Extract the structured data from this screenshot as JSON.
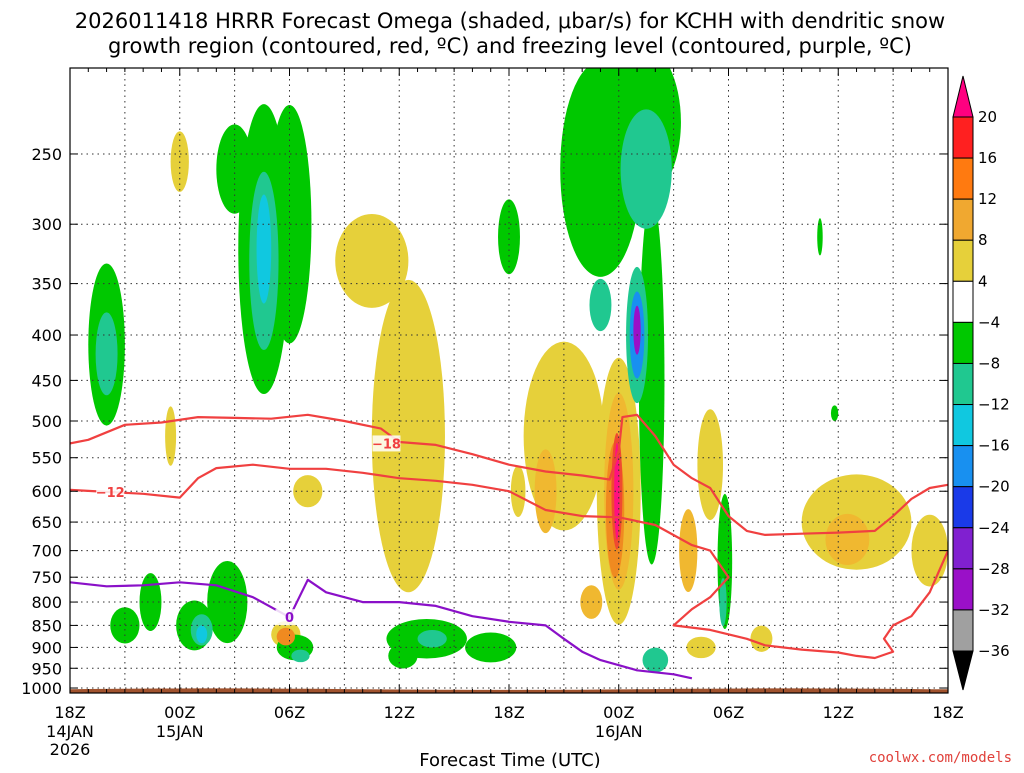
{
  "chart_data": {
    "type": "time-height cross section",
    "title_line1": "2026011418 HRRR Forecast Omega (shaded, μbar/s) for KCHH with dendritic snow",
    "title_line2": "growth region (contoured, red, ºC) and freezing level (contoured, purple, ºC)",
    "xlabel": "Forecast Time (UTC)",
    "credit": "coolwx.com/models",
    "x_ticks": [
      {
        "hour": 0,
        "l1": "18Z",
        "l2": "14JAN",
        "l3": "2026"
      },
      {
        "hour": 6,
        "l1": "00Z",
        "l2": "15JAN",
        "l3": ""
      },
      {
        "hour": 12,
        "l1": "06Z",
        "l2": "",
        "l3": ""
      },
      {
        "hour": 18,
        "l1": "12Z",
        "l2": "",
        "l3": ""
      },
      {
        "hour": 24,
        "l1": "18Z",
        "l2": "",
        "l3": ""
      },
      {
        "hour": 30,
        "l1": "00Z",
        "l2": "16JAN",
        "l3": ""
      },
      {
        "hour": 36,
        "l1": "06Z",
        "l2": "",
        "l3": ""
      },
      {
        "hour": 42,
        "l1": "12Z",
        "l2": "",
        "l3": ""
      },
      {
        "hour": 48,
        "l1": "18Z",
        "l2": "",
        "l3": ""
      }
    ],
    "xlim_hours": [
      0,
      48
    ],
    "y_ticks_hpa": [
      250,
      300,
      350,
      400,
      450,
      500,
      550,
      600,
      650,
      700,
      750,
      800,
      850,
      900,
      950,
      1000
    ],
    "ylim_hpa": [
      1013,
      200
    ],
    "colorbar": {
      "ticks": [
        "20",
        "16",
        "12",
        "8",
        "4",
        "−4",
        "−8",
        "−12",
        "−16",
        "−20",
        "−24",
        "−28",
        "−32",
        "−36"
      ],
      "colors": [
        "#ff0080",
        "#ff2020",
        "#ff7a10",
        "#f0a830",
        "#e6d03a",
        "#ffffff",
        "#00c800",
        "#20c890",
        "#10c8e0",
        "#1890f0",
        "#1a3ae8",
        "#8020d0",
        "#9a10c8",
        "#a0a0a0",
        "#000000"
      ]
    },
    "omega_features": [
      {
        "t": 2.0,
        "p": 410,
        "dt": 1.0,
        "dp": 170,
        "v": -8
      },
      {
        "t": 2.0,
        "p": 420,
        "dt": 0.6,
        "dp": 90,
        "v": -12
      },
      {
        "t": 3.0,
        "p": 850,
        "dt": 0.8,
        "dp": 80,
        "v": -8
      },
      {
        "t": 4.4,
        "p": 800,
        "dt": 0.6,
        "dp": 120,
        "v": -8
      },
      {
        "t": 6.8,
        "p": 850,
        "dt": 1.0,
        "dp": 110,
        "v": -8
      },
      {
        "t": 7.2,
        "p": 860,
        "dt": 0.6,
        "dp": 70,
        "v": -12
      },
      {
        "t": 7.2,
        "p": 870,
        "dt": 0.3,
        "dp": 40,
        "v": -16
      },
      {
        "t": 8.6,
        "p": 800,
        "dt": 1.1,
        "dp": 170,
        "v": -8
      },
      {
        "t": 10.6,
        "p": 320,
        "dt": 1.4,
        "dp": 230,
        "v": -8
      },
      {
        "t": 10.6,
        "p": 330,
        "dt": 0.8,
        "dp": 150,
        "v": -12
      },
      {
        "t": 10.6,
        "p": 320,
        "dt": 0.4,
        "dp": 90,
        "v": -16
      },
      {
        "t": 12.0,
        "p": 300,
        "dt": 1.2,
        "dp": 180,
        "v": -8
      },
      {
        "t": 9.0,
        "p": 260,
        "dt": 1.0,
        "dp": 60,
        "v": -8
      },
      {
        "t": 12.3,
        "p": 900,
        "dt": 1.0,
        "dp": 60,
        "v": -8
      },
      {
        "t": 12.6,
        "p": 920,
        "dt": 0.5,
        "dp": 30,
        "v": -12
      },
      {
        "t": 19.5,
        "p": 880,
        "dt": 2.2,
        "dp": 90,
        "v": -8
      },
      {
        "t": 19.8,
        "p": 880,
        "dt": 0.8,
        "dp": 40,
        "v": -12
      },
      {
        "t": 18.2,
        "p": 920,
        "dt": 0.8,
        "dp": 60,
        "v": -8
      },
      {
        "t": 23.0,
        "p": 900,
        "dt": 1.4,
        "dp": 70,
        "v": -8
      },
      {
        "t": 24.0,
        "p": 310,
        "dt": 0.6,
        "dp": 60,
        "v": -8
      },
      {
        "t": 29.0,
        "p": 260,
        "dt": 2.2,
        "dp": 180,
        "v": -8
      },
      {
        "t": 29.0,
        "p": 370,
        "dt": 0.6,
        "dp": 50,
        "v": -12
      },
      {
        "t": 31.2,
        "p": 230,
        "dt": 2.2,
        "dp": 140,
        "v": -8
      },
      {
        "t": 31.5,
        "p": 260,
        "dt": 1.4,
        "dp": 80,
        "v": -12
      },
      {
        "t": 31.8,
        "p": 450,
        "dt": 0.7,
        "dp": 400,
        "v": -8
      },
      {
        "t": 31.0,
        "p": 400,
        "dt": 0.6,
        "dp": 140,
        "v": -12
      },
      {
        "t": 31.0,
        "p": 400,
        "dt": 0.4,
        "dp": 90,
        "v": -20
      },
      {
        "t": 31.0,
        "p": 395,
        "dt": 0.2,
        "dp": 50,
        "v": -28
      },
      {
        "t": 35.8,
        "p": 720,
        "dt": 0.4,
        "dp": 250,
        "v": -8
      },
      {
        "t": 35.7,
        "p": 800,
        "dt": 0.2,
        "dp": 100,
        "v": -12
      },
      {
        "t": 32.0,
        "p": 930,
        "dt": 0.7,
        "dp": 60,
        "v": -12
      },
      {
        "t": 41.0,
        "p": 310,
        "dt": 0.15,
        "dp": 30,
        "v": -8
      },
      {
        "t": 41.8,
        "p": 490,
        "dt": 0.2,
        "dp": 20,
        "v": -8
      }
    ],
    "omega_positive_features": [
      {
        "t": 6.0,
        "p": 255,
        "dt": 0.5,
        "dp": 40,
        "v": 4
      },
      {
        "t": 18.5,
        "p": 520,
        "dt": 2.0,
        "dp": 400,
        "v": 4
      },
      {
        "t": 16.5,
        "p": 330,
        "dt": 2.0,
        "dp": 80,
        "v": 4
      },
      {
        "t": 27.0,
        "p": 520,
        "dt": 2.2,
        "dp": 250,
        "v": 4
      },
      {
        "t": 26.0,
        "p": 600,
        "dt": 0.6,
        "dp": 130,
        "v": 8
      },
      {
        "t": 30.0,
        "p": 600,
        "dt": 1.2,
        "dp": 400,
        "v": 4
      },
      {
        "t": 30.0,
        "p": 600,
        "dt": 0.8,
        "dp": 300,
        "v": 8
      },
      {
        "t": 29.8,
        "p": 630,
        "dt": 0.5,
        "dp": 220,
        "v": 12
      },
      {
        "t": 29.9,
        "p": 600,
        "dt": 0.3,
        "dp": 180,
        "v": 16
      },
      {
        "t": 29.9,
        "p": 600,
        "dt": 0.15,
        "dp": 150,
        "v": 20
      },
      {
        "t": 28.5,
        "p": 800,
        "dt": 0.6,
        "dp": 70,
        "v": 8
      },
      {
        "t": 24.5,
        "p": 600,
        "dt": 0.4,
        "dp": 80,
        "v": 4
      },
      {
        "t": 35.0,
        "p": 560,
        "dt": 0.7,
        "dp": 160,
        "v": 4
      },
      {
        "t": 33.8,
        "p": 700,
        "dt": 0.5,
        "dp": 150,
        "v": 8
      },
      {
        "t": 34.5,
        "p": 900,
        "dt": 0.8,
        "dp": 50,
        "v": 4
      },
      {
        "t": 37.8,
        "p": 880,
        "dt": 0.6,
        "dp": 60,
        "v": 4
      },
      {
        "t": 43.0,
        "p": 650,
        "dt": 3.0,
        "dp": 160,
        "v": 4
      },
      {
        "t": 42.5,
        "p": 680,
        "dt": 1.2,
        "dp": 90,
        "v": 8
      },
      {
        "t": 47.0,
        "p": 700,
        "dt": 1.0,
        "dp": 130,
        "v": 4
      },
      {
        "t": 11.8,
        "p": 870,
        "dt": 0.8,
        "dp": 60,
        "v": 4
      },
      {
        "t": 11.8,
        "p": 875,
        "dt": 0.5,
        "dp": 40,
        "v": 12
      },
      {
        "t": 5.5,
        "p": 520,
        "dt": 0.3,
        "dp": 80,
        "v": 4
      },
      {
        "t": 13.0,
        "p": 600,
        "dt": 0.8,
        "dp": 50,
        "v": 4
      }
    ],
    "contours": [
      {
        "label": "−18",
        "color": "#f04040",
        "label_at": [
          17.3,
          530
        ],
        "points": [
          [
            0,
            530
          ],
          [
            1,
            525
          ],
          [
            3,
            505
          ],
          [
            5,
            502
          ],
          [
            7,
            495
          ],
          [
            9,
            496
          ],
          [
            11,
            497
          ],
          [
            13,
            492
          ],
          [
            15,
            500
          ],
          [
            17,
            510
          ],
          [
            18,
            528
          ],
          [
            20,
            532
          ],
          [
            22,
            545
          ],
          [
            24,
            560
          ],
          [
            26,
            570
          ],
          [
            28,
            576
          ],
          [
            29.5,
            582
          ],
          [
            30,
            540
          ],
          [
            30.2,
            495
          ],
          [
            31,
            492
          ],
          [
            32,
            520
          ],
          [
            33,
            560
          ],
          [
            34,
            580
          ],
          [
            35,
            595
          ],
          [
            36,
            640
          ],
          [
            37,
            665
          ],
          [
            38,
            672
          ],
          [
            40,
            670
          ],
          [
            42,
            668
          ],
          [
            44,
            665
          ],
          [
            45,
            640
          ],
          [
            46,
            612
          ],
          [
            47,
            595
          ],
          [
            48,
            590
          ]
        ]
      },
      {
        "label": "−12",
        "color": "#f04040",
        "label_at": [
          2.2,
          601
        ],
        "points": [
          [
            0,
            598
          ],
          [
            2,
            601
          ],
          [
            4,
            604
          ],
          [
            6,
            610
          ],
          [
            7,
            580
          ],
          [
            8,
            565
          ],
          [
            10,
            560
          ],
          [
            12,
            566
          ],
          [
            14,
            566
          ],
          [
            16,
            572
          ],
          [
            18,
            580
          ],
          [
            20,
            584
          ],
          [
            22,
            590
          ],
          [
            24,
            600
          ],
          [
            26,
            630
          ],
          [
            28,
            640
          ],
          [
            30,
            642
          ],
          [
            32,
            655
          ],
          [
            34,
            690
          ],
          [
            35,
            700
          ],
          [
            36,
            750
          ],
          [
            35,
            790
          ],
          [
            34,
            815
          ],
          [
            33,
            850
          ],
          [
            35,
            860
          ],
          [
            37,
            880
          ],
          [
            38,
            895
          ],
          [
            40,
            905
          ],
          [
            42,
            912
          ],
          [
            43,
            920
          ],
          [
            44,
            925
          ],
          [
            45,
            910
          ],
          [
            44.5,
            880
          ],
          [
            45,
            850
          ],
          [
            46,
            830
          ],
          [
            47,
            780
          ],
          [
            48,
            700
          ]
        ]
      },
      {
        "label": "0",
        "color": "#8a10c8",
        "label_at": [
          12.0,
          832
        ],
        "points": [
          [
            0,
            760
          ],
          [
            2,
            768
          ],
          [
            4,
            766
          ],
          [
            6,
            760
          ],
          [
            8,
            766
          ],
          [
            10,
            790
          ],
          [
            12,
            832
          ],
          [
            13,
            755
          ],
          [
            14,
            780
          ],
          [
            16,
            800
          ],
          [
            18,
            800
          ],
          [
            20,
            808
          ],
          [
            22,
            830
          ],
          [
            24,
            842
          ],
          [
            26,
            850
          ],
          [
            27,
            880
          ],
          [
            28,
            910
          ],
          [
            29,
            930
          ],
          [
            31,
            955
          ],
          [
            33,
            965
          ],
          [
            34,
            975
          ]
        ]
      }
    ]
  }
}
